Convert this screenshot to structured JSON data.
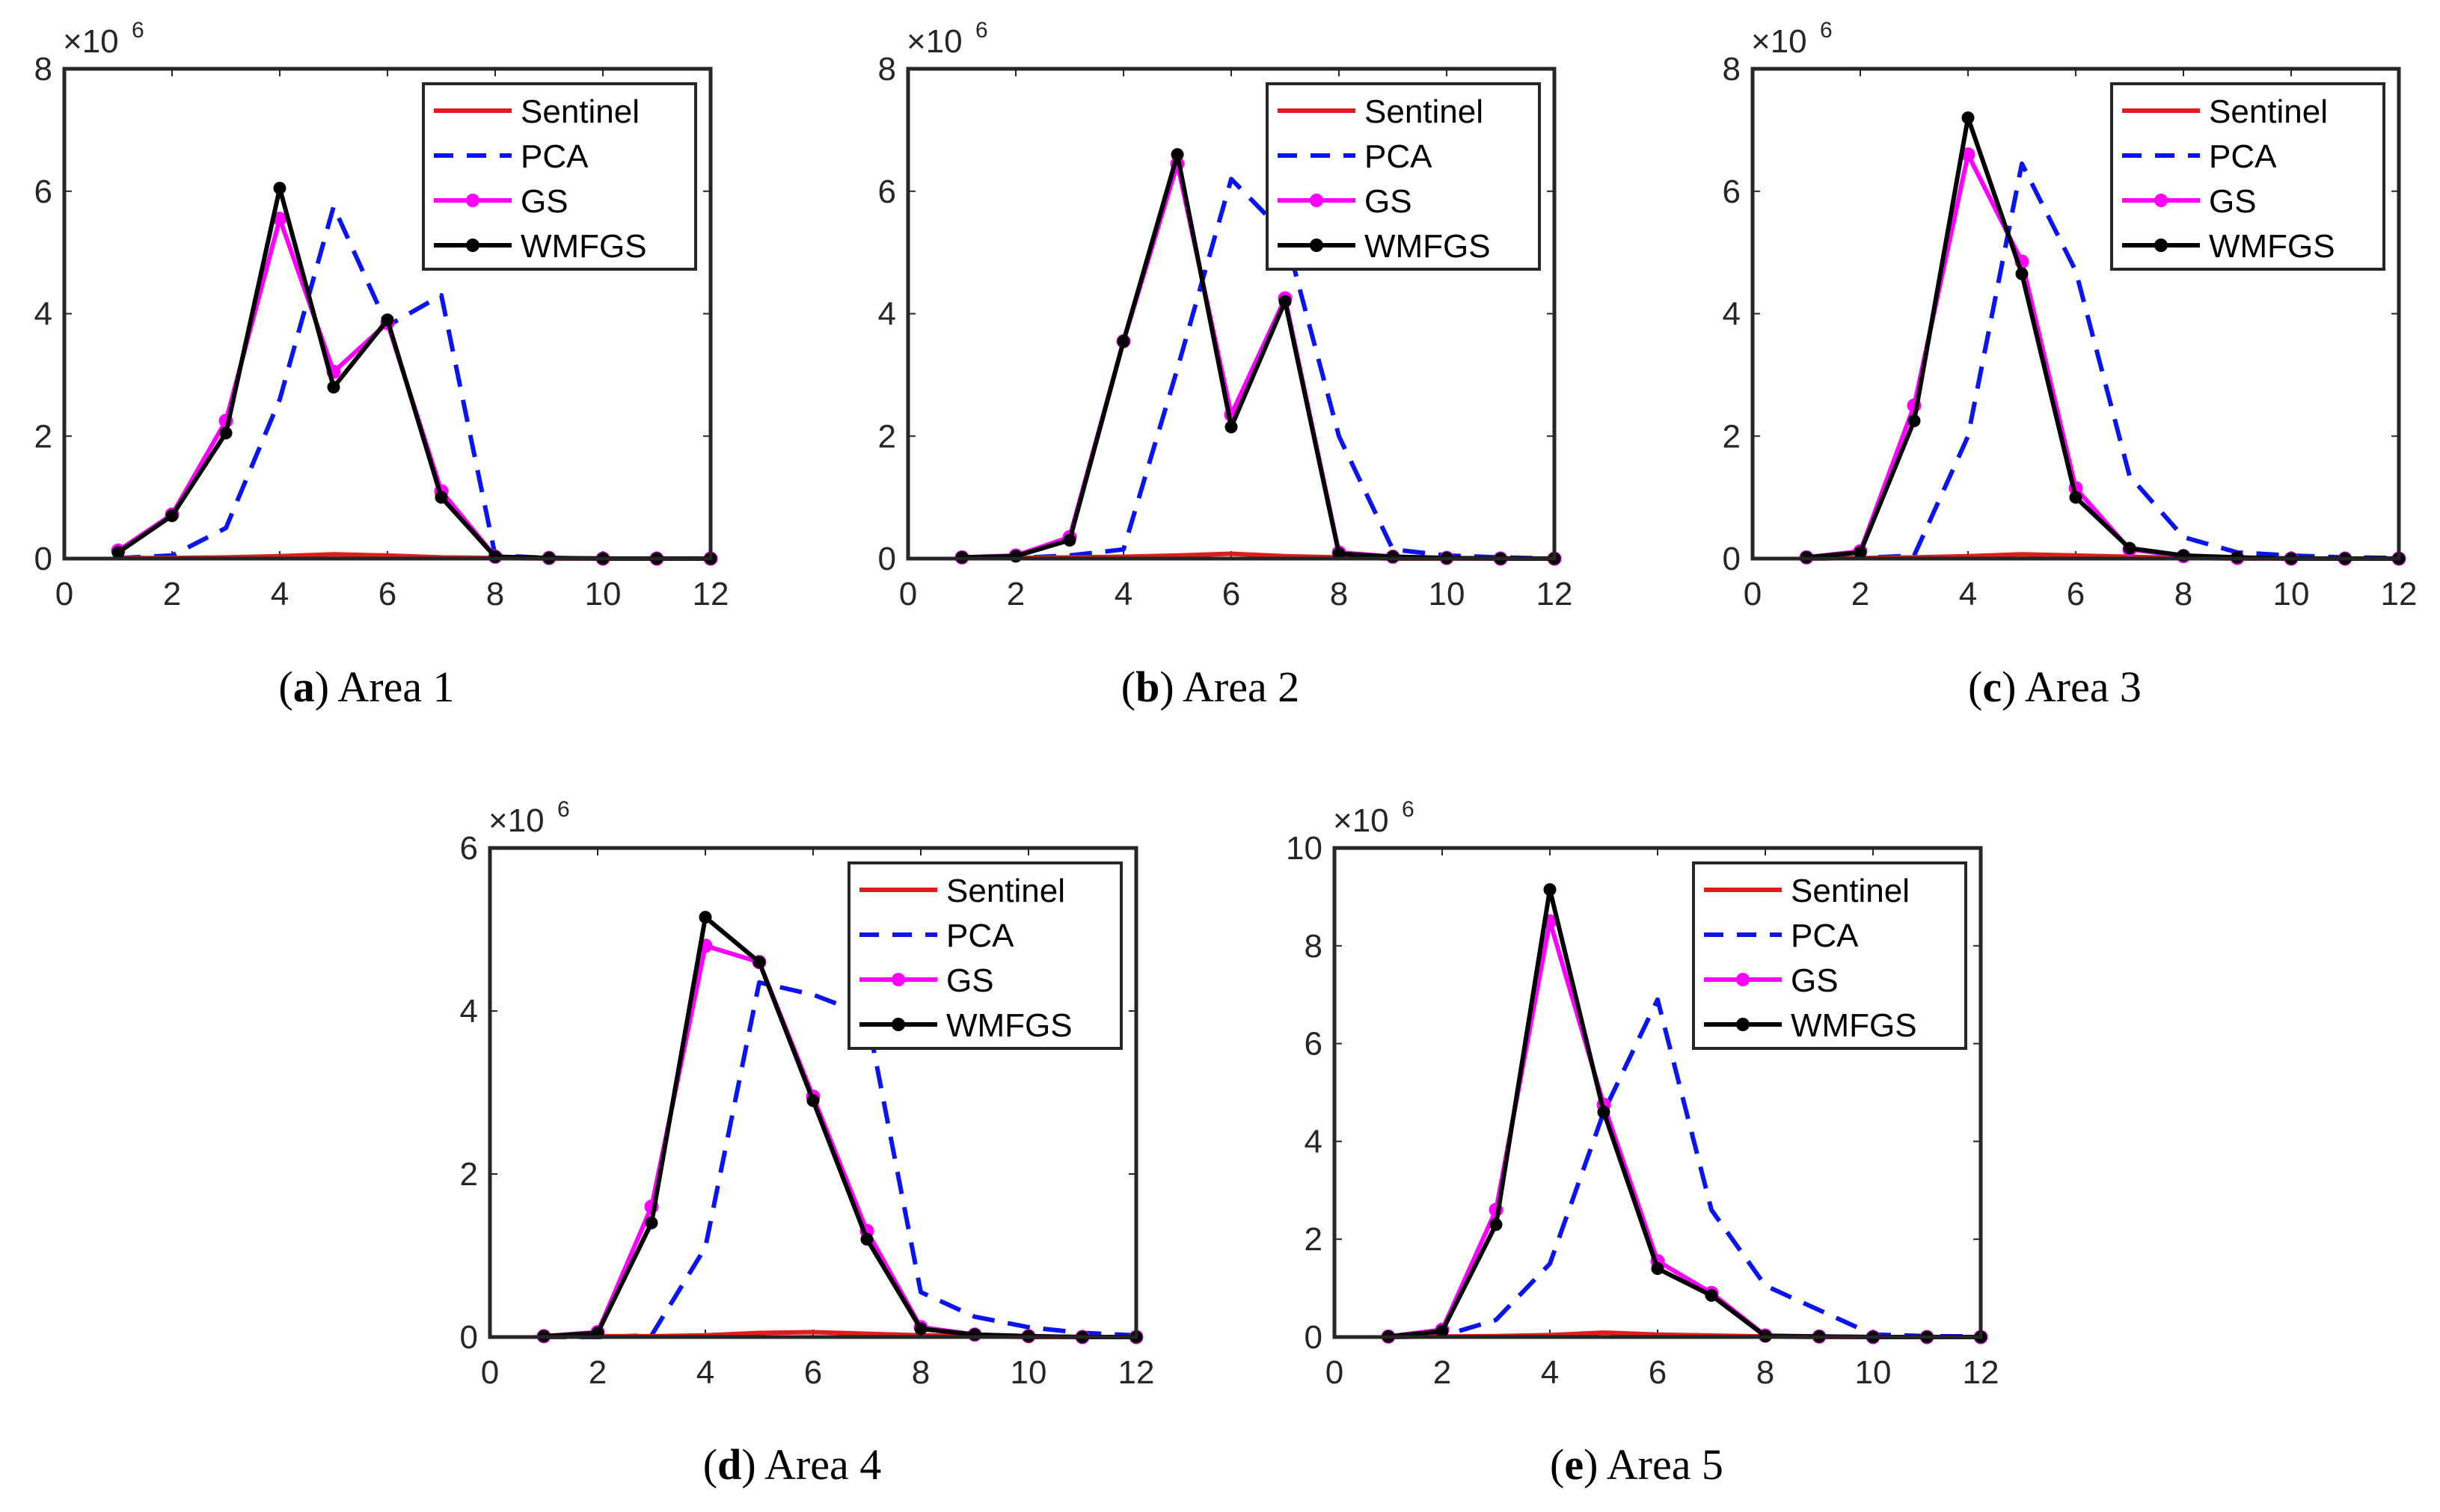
{
  "colors": {
    "Sentinel": "#e41a1c",
    "PCA": "#0a14f0",
    "GS": "#ff00ff",
    "WMFGS": "#000000"
  },
  "exponent_label": {
    "base": "×10",
    "power": "6"
  },
  "chart_data": [
    {
      "type": "line",
      "caption_letter": "a",
      "caption_text": "Area 1",
      "x": [
        1,
        2,
        3,
        4,
        5,
        6,
        7,
        8,
        9,
        10,
        11,
        12
      ],
      "xlim": [
        0,
        12
      ],
      "xticks": [
        "0",
        "2",
        "4",
        "6",
        "8",
        "10",
        "12"
      ],
      "ylim": [
        0,
        8
      ],
      "yticks": [
        "0",
        "2",
        "4",
        "6",
        "8"
      ],
      "y_scale": "×10^6",
      "legend": [
        "Sentinel",
        "PCA",
        "GS",
        "WMFGS"
      ],
      "legend_location": "top-right",
      "series": [
        {
          "name": "Sentinel",
          "style": "solid",
          "values": [
            0.01,
            0.01,
            0.02,
            0.04,
            0.07,
            0.05,
            0.02,
            0.01,
            0.0,
            0.0,
            0.0,
            0.0
          ]
        },
        {
          "name": "PCA",
          "style": "dashed",
          "values": [
            0.01,
            0.05,
            0.5,
            2.6,
            5.75,
            3.8,
            4.3,
            0.05,
            0.01,
            0.0,
            0.0,
            0.0
          ]
        },
        {
          "name": "GS",
          "style": "solid-marker",
          "values": [
            0.13,
            0.72,
            2.25,
            5.55,
            3.05,
            3.85,
            1.1,
            0.03,
            0.01,
            0.0,
            0.0,
            0.0
          ]
        },
        {
          "name": "WMFGS",
          "style": "solid-marker",
          "values": [
            0.1,
            0.7,
            2.05,
            6.05,
            2.8,
            3.9,
            1.0,
            0.03,
            0.01,
            0.0,
            0.0,
            0.0
          ]
        }
      ]
    },
    {
      "type": "line",
      "caption_letter": "b",
      "caption_text": "Area 2",
      "x": [
        1,
        2,
        3,
        4,
        5,
        6,
        7,
        8,
        9,
        10,
        11,
        12
      ],
      "xlim": [
        0,
        12
      ],
      "xticks": [
        "0",
        "2",
        "4",
        "6",
        "8",
        "10",
        "12"
      ],
      "ylim": [
        0,
        8
      ],
      "yticks": [
        "0",
        "2",
        "4",
        "6",
        "8"
      ],
      "y_scale": "×10^6",
      "legend": [
        "Sentinel",
        "PCA",
        "GS",
        "WMFGS"
      ],
      "legend_location": "top-right",
      "series": [
        {
          "name": "Sentinel",
          "style": "solid",
          "values": [
            0.01,
            0.01,
            0.02,
            0.03,
            0.05,
            0.08,
            0.04,
            0.02,
            0.0,
            0.0,
            0.0,
            0.0
          ]
        },
        {
          "name": "PCA",
          "style": "dashed",
          "values": [
            0.01,
            0.01,
            0.05,
            0.15,
            3.1,
            6.2,
            5.3,
            2.0,
            0.15,
            0.05,
            0.02,
            0.0
          ]
        },
        {
          "name": "GS",
          "style": "solid-marker",
          "values": [
            0.02,
            0.05,
            0.35,
            3.55,
            6.45,
            2.35,
            4.25,
            0.1,
            0.03,
            0.01,
            0.0,
            0.0
          ]
        },
        {
          "name": "WMFGS",
          "style": "solid-marker",
          "values": [
            0.02,
            0.04,
            0.3,
            3.55,
            6.6,
            2.15,
            4.2,
            0.08,
            0.03,
            0.01,
            0.0,
            0.0
          ]
        }
      ]
    },
    {
      "type": "line",
      "caption_letter": "c",
      "caption_text": "Area 3",
      "x": [
        1,
        2,
        3,
        4,
        5,
        6,
        7,
        8,
        9,
        10,
        11,
        12
      ],
      "xlim": [
        0,
        12
      ],
      "xticks": [
        "0",
        "2",
        "4",
        "6",
        "8",
        "10",
        "12"
      ],
      "ylim": [
        0,
        8
      ],
      "yticks": [
        "0",
        "2",
        "4",
        "6",
        "8"
      ],
      "y_scale": "×10^6",
      "legend": [
        "Sentinel",
        "PCA",
        "GS",
        "WMFGS"
      ],
      "legend_location": "top-right",
      "series": [
        {
          "name": "Sentinel",
          "style": "solid",
          "values": [
            0.0,
            0.01,
            0.02,
            0.04,
            0.07,
            0.05,
            0.03,
            0.01,
            0.0,
            0.0,
            0.0,
            0.0
          ]
        },
        {
          "name": "PCA",
          "style": "dashed",
          "values": [
            0.0,
            0.01,
            0.05,
            2.0,
            6.45,
            4.7,
            1.35,
            0.35,
            0.1,
            0.05,
            0.02,
            0.01
          ]
        },
        {
          "name": "GS",
          "style": "solid-marker",
          "values": [
            0.02,
            0.12,
            2.5,
            6.6,
            4.85,
            1.15,
            0.15,
            0.04,
            0.01,
            0.0,
            0.0,
            0.0
          ]
        },
        {
          "name": "WMFGS",
          "style": "solid-marker",
          "values": [
            0.02,
            0.1,
            2.25,
            7.2,
            4.65,
            1.0,
            0.17,
            0.05,
            0.02,
            0.0,
            0.0,
            0.0
          ]
        }
      ]
    },
    {
      "type": "line",
      "caption_letter": "d",
      "caption_text": "Area 4",
      "x": [
        1,
        2,
        3,
        4,
        5,
        6,
        7,
        8,
        9,
        10,
        11,
        12
      ],
      "xlim": [
        0,
        12
      ],
      "xticks": [
        "0",
        "2",
        "4",
        "6",
        "8",
        "10",
        "12"
      ],
      "ylim": [
        0,
        6
      ],
      "yticks": [
        "0",
        "2",
        "4",
        "6"
      ],
      "y_scale": "×10^6",
      "legend": [
        "Sentinel",
        "PCA",
        "GS",
        "WMFGS"
      ],
      "legend_location": "top-right",
      "series": [
        {
          "name": "Sentinel",
          "style": "solid",
          "values": [
            0.0,
            0.01,
            0.01,
            0.02,
            0.05,
            0.06,
            0.04,
            0.02,
            0.01,
            0.0,
            0.0,
            0.0
          ]
        },
        {
          "name": "PCA",
          "style": "dashed",
          "values": [
            0.0,
            0.0,
            0.02,
            1.1,
            4.35,
            4.2,
            3.95,
            0.55,
            0.25,
            0.12,
            0.05,
            0.02
          ]
        },
        {
          "name": "GS",
          "style": "solid-marker",
          "values": [
            0.01,
            0.06,
            1.6,
            4.8,
            4.6,
            2.95,
            1.3,
            0.12,
            0.03,
            0.01,
            0.0,
            0.0
          ]
        },
        {
          "name": "WMFGS",
          "style": "solid-marker",
          "values": [
            0.01,
            0.05,
            1.4,
            5.15,
            4.6,
            2.9,
            1.2,
            0.1,
            0.03,
            0.01,
            0.0,
            0.0
          ]
        }
      ]
    },
    {
      "type": "line",
      "caption_letter": "e",
      "caption_text": "Area 5",
      "x": [
        1,
        2,
        3,
        4,
        5,
        6,
        7,
        8,
        9,
        10,
        11,
        12
      ],
      "xlim": [
        0,
        12
      ],
      "xticks": [
        "0",
        "2",
        "4",
        "6",
        "8",
        "10",
        "12"
      ],
      "ylim": [
        0,
        10
      ],
      "yticks": [
        "0",
        "2",
        "4",
        "6",
        "8",
        "10"
      ],
      "y_scale": "×10^6",
      "legend": [
        "Sentinel",
        "PCA",
        "GS",
        "WMFGS"
      ],
      "legend_location": "top-right",
      "series": [
        {
          "name": "Sentinel",
          "style": "solid",
          "values": [
            0.0,
            0.01,
            0.02,
            0.04,
            0.09,
            0.05,
            0.03,
            0.01,
            0.0,
            0.0,
            0.0,
            0.0
          ]
        },
        {
          "name": "PCA",
          "style": "dashed",
          "values": [
            0.0,
            0.02,
            0.35,
            1.5,
            4.6,
            6.9,
            2.6,
            1.05,
            0.55,
            0.05,
            0.02,
            0.01
          ]
        },
        {
          "name": "GS",
          "style": "solid-marker",
          "values": [
            0.01,
            0.15,
            2.6,
            8.5,
            4.75,
            1.55,
            0.9,
            0.03,
            0.01,
            0.0,
            0.0,
            0.0
          ]
        },
        {
          "name": "WMFGS",
          "style": "solid-marker",
          "values": [
            0.01,
            0.12,
            2.3,
            9.15,
            4.6,
            1.4,
            0.85,
            0.02,
            0.01,
            0.0,
            0.0,
            0.0
          ]
        }
      ]
    }
  ]
}
